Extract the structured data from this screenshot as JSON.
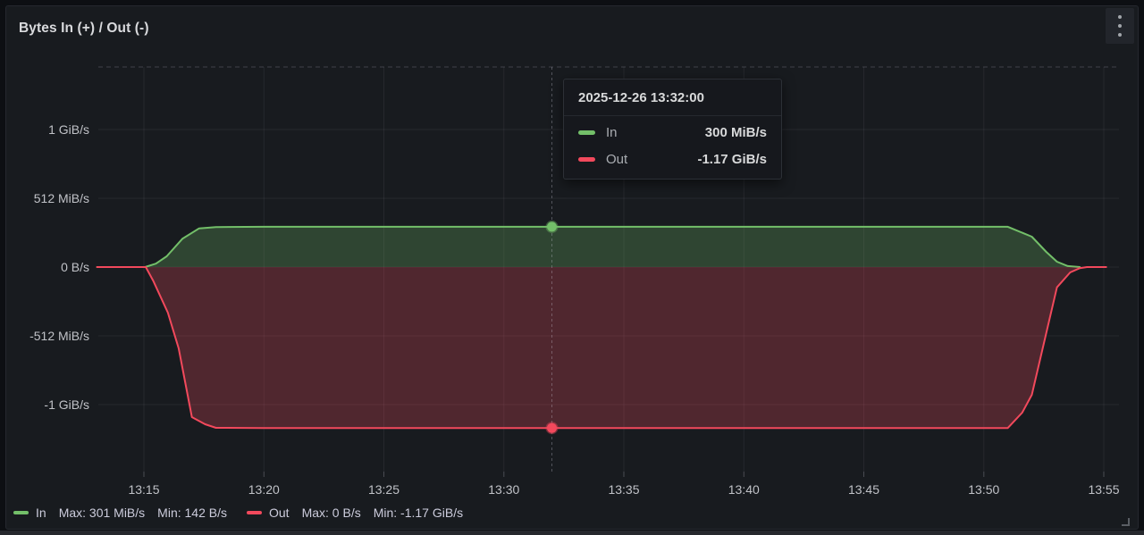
{
  "panel": {
    "title": "Bytes In (+) / Out (-)"
  },
  "colors": {
    "in": "#73bf69",
    "out": "#f2495c",
    "panel_bg": "#181b1f",
    "page_bg": "#0d0f13",
    "grid": "rgba(204,204,220,0.08)",
    "tick": "rgba(204,204,220,0.28)",
    "plot_top_dash": "rgba(204,204,220,0.22)",
    "crosshair": "rgba(204,204,220,0.32)",
    "axis_text": "#c0c2c7"
  },
  "tooltip": {
    "timestamp": "2025-12-26 13:32:00",
    "rows": [
      {
        "label": "In",
        "value": "300 MiB/s",
        "color": "#73bf69"
      },
      {
        "label": "Out",
        "value": "-1.17 GiB/s",
        "color": "#f2495c"
      }
    ]
  },
  "legend": {
    "items": [
      {
        "label": "In",
        "color": "#73bf69",
        "max": "Max: 301 MiB/s",
        "min": "Min: 142 B/s"
      },
      {
        "label": "Out",
        "color": "#f2495c",
        "max": "Max: 0 B/s",
        "min": "Min: -1.17 GiB/s"
      }
    ]
  },
  "chart_data": {
    "type": "area",
    "title": "Bytes In (+) / Out (-)",
    "x_unit": "minutes after 13:00 on 2025-12-26",
    "y_unit": "MiB/s",
    "xlim": [
      13.0,
      56.0
    ],
    "ylim": [
      -1523,
      1489
    ],
    "grid": true,
    "legend_position": "bottom",
    "x_ticks": [
      {
        "m": 15,
        "label": "13:15"
      },
      {
        "m": 20,
        "label": "13:20"
      },
      {
        "m": 25,
        "label": "13:25"
      },
      {
        "m": 30,
        "label": "13:30"
      },
      {
        "m": 35,
        "label": "13:35"
      },
      {
        "m": 40,
        "label": "13:40"
      },
      {
        "m": 45,
        "label": "13:45"
      },
      {
        "m": 50,
        "label": "13:50"
      },
      {
        "m": 55,
        "label": "13:55"
      }
    ],
    "y_ticks": [
      {
        "v": 1024,
        "label": "1 GiB/s"
      },
      {
        "v": 512,
        "label": "512 MiB/s"
      },
      {
        "v": 0,
        "label": "0 B/s"
      },
      {
        "v": -512,
        "label": "-512 MiB/s"
      },
      {
        "v": -1024,
        "label": "-1 GiB/s"
      }
    ],
    "series": [
      {
        "name": "In",
        "color": "#73bf69",
        "max": "301 MiB/s",
        "min": "142 B/s",
        "points": [
          [
            13.05,
            0
          ],
          [
            15.05,
            0
          ],
          [
            15.5,
            25
          ],
          [
            15.95,
            80
          ],
          [
            16.6,
            210
          ],
          [
            17.3,
            288
          ],
          [
            18,
            298
          ],
          [
            20,
            300
          ],
          [
            32,
            300
          ],
          [
            51,
            300
          ],
          [
            52,
            226
          ],
          [
            52.6,
            113
          ],
          [
            53.05,
            40
          ],
          [
            53.5,
            7
          ],
          [
            54,
            0
          ]
        ]
      },
      {
        "name": "Out",
        "color": "#f2495c",
        "max": "0 B/s",
        "min": "-1.17 GiB/s",
        "points": [
          [
            13.05,
            0
          ],
          [
            15.08,
            0
          ],
          [
            15.4,
            -106
          ],
          [
            16,
            -339
          ],
          [
            16.45,
            -605
          ],
          [
            17,
            -1117
          ],
          [
            17.55,
            -1170
          ],
          [
            18,
            -1197
          ],
          [
            20,
            -1198
          ],
          [
            32,
            -1198
          ],
          [
            51,
            -1198
          ],
          [
            51.6,
            -1084
          ],
          [
            52,
            -951
          ],
          [
            53.05,
            -151
          ],
          [
            53.6,
            -40
          ],
          [
            54,
            -8
          ],
          [
            54.3,
            0
          ],
          [
            55.1,
            0
          ]
        ]
      }
    ],
    "hover": {
      "m": 32,
      "values": [
        300,
        -1198
      ]
    }
  }
}
